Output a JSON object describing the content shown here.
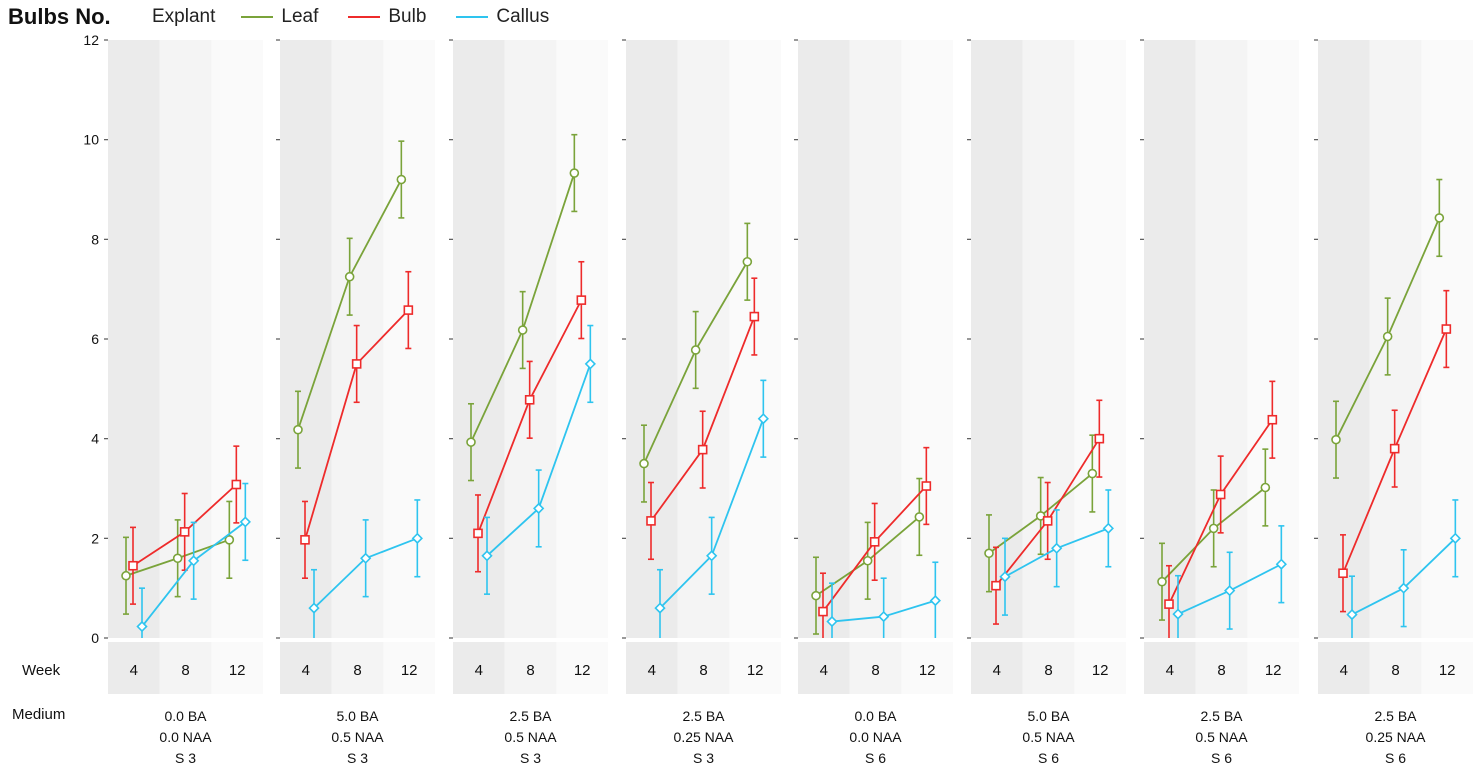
{
  "chart_data": {
    "type": "line",
    "ylabel": "Bulbs No.",
    "ylim": [
      0,
      12
    ],
    "yticks": [
      "0",
      "2",
      "4",
      "6",
      "8",
      "10",
      "12"
    ],
    "legend": {
      "title": "Explant",
      "items": [
        {
          "name": "Leaf",
          "color": "#7aa33a"
        },
        {
          "name": "Bulb",
          "color": "#ee2b2b"
        },
        {
          "name": "Callus",
          "color": "#2ec4ef"
        }
      ]
    },
    "row_labels": {
      "week": "Week",
      "medium": "Medium"
    },
    "weeks": [
      "4",
      "8",
      "12"
    ],
    "panels": [
      {
        "medium": [
          "0.0 BA",
          "0.0 NAA",
          "S 3"
        ],
        "series": [
          {
            "name": "Leaf",
            "values": [
              1.25,
              1.6,
              1.97
            ],
            "errors": [
              0.77,
              0.77,
              0.77
            ]
          },
          {
            "name": "Bulb",
            "values": [
              1.45,
              2.13,
              3.08
            ],
            "errors": [
              0.77,
              0.77,
              0.77
            ]
          },
          {
            "name": "Callus",
            "values": [
              0.23,
              1.55,
              2.33
            ],
            "errors": [
              0.77,
              0.77,
              0.77
            ]
          }
        ]
      },
      {
        "medium": [
          "5.0 BA",
          "0.5 NAA",
          "S 3"
        ],
        "series": [
          {
            "name": "Leaf",
            "values": [
              4.18,
              7.25,
              9.2
            ],
            "errors": [
              0.77,
              0.77,
              0.77
            ]
          },
          {
            "name": "Bulb",
            "values": [
              1.97,
              5.5,
              6.58
            ],
            "errors": [
              0.77,
              0.77,
              0.77
            ]
          },
          {
            "name": "Callus",
            "values": [
              0.6,
              1.6,
              2.0
            ],
            "errors": [
              0.77,
              0.77,
              0.77
            ]
          }
        ]
      },
      {
        "medium": [
          "2.5 BA",
          "0.5 NAA",
          "S 3"
        ],
        "series": [
          {
            "name": "Leaf",
            "values": [
              3.93,
              6.18,
              9.33
            ],
            "errors": [
              0.77,
              0.77,
              0.77
            ]
          },
          {
            "name": "Bulb",
            "values": [
              2.1,
              4.78,
              6.78
            ],
            "errors": [
              0.77,
              0.77,
              0.77
            ]
          },
          {
            "name": "Callus",
            "values": [
              1.65,
              2.6,
              5.5
            ],
            "errors": [
              0.77,
              0.77,
              0.77
            ]
          }
        ]
      },
      {
        "medium": [
          "2.5 BA",
          "0.25 NAA",
          "S 3"
        ],
        "series": [
          {
            "name": "Leaf",
            "values": [
              3.5,
              5.78,
              7.55
            ],
            "errors": [
              0.77,
              0.77,
              0.77
            ]
          },
          {
            "name": "Bulb",
            "values": [
              2.35,
              3.78,
              6.45
            ],
            "errors": [
              0.77,
              0.77,
              0.77
            ]
          },
          {
            "name": "Callus",
            "values": [
              0.6,
              1.65,
              4.4
            ],
            "errors": [
              0.77,
              0.77,
              0.77
            ]
          }
        ]
      },
      {
        "medium": [
          "0.0 BA",
          "0.0 NAA",
          "S 6"
        ],
        "series": [
          {
            "name": "Leaf",
            "values": [
              0.85,
              1.55,
              2.43
            ],
            "errors": [
              0.77,
              0.77,
              0.77
            ]
          },
          {
            "name": "Bulb",
            "values": [
              0.53,
              1.93,
              3.05
            ],
            "errors": [
              0.77,
              0.77,
              0.77
            ]
          },
          {
            "name": "Callus",
            "values": [
              0.33,
              0.43,
              0.75
            ],
            "errors": [
              0.77,
              0.77,
              0.77
            ]
          }
        ]
      },
      {
        "medium": [
          "5.0 BA",
          "0.5 NAA",
          "S 6"
        ],
        "series": [
          {
            "name": "Leaf",
            "values": [
              1.7,
              2.45,
              3.3
            ],
            "errors": [
              0.77,
              0.77,
              0.77
            ]
          },
          {
            "name": "Bulb",
            "values": [
              1.05,
              2.35,
              4.0
            ],
            "errors": [
              0.77,
              0.77,
              0.77
            ]
          },
          {
            "name": "Callus",
            "values": [
              1.23,
              1.8,
              2.2
            ],
            "errors": [
              0.77,
              0.77,
              0.77
            ]
          }
        ]
      },
      {
        "medium": [
          "2.5 BA",
          "0.5 NAA",
          "S 6"
        ],
        "series": [
          {
            "name": "Leaf",
            "values": [
              1.13,
              2.2,
              3.02
            ],
            "errors": [
              0.77,
              0.77,
              0.77
            ]
          },
          {
            "name": "Bulb",
            "values": [
              0.68,
              2.88,
              4.38
            ],
            "errors": [
              0.77,
              0.77,
              0.77
            ]
          },
          {
            "name": "Callus",
            "values": [
              0.48,
              0.95,
              1.48
            ],
            "errors": [
              0.77,
              0.77,
              0.77
            ]
          }
        ]
      },
      {
        "medium": [
          "2.5 BA",
          "0.25 NAA",
          "S 6"
        ],
        "series": [
          {
            "name": "Leaf",
            "values": [
              3.98,
              6.05,
              8.43
            ],
            "errors": [
              0.77,
              0.77,
              0.77
            ]
          },
          {
            "name": "Bulb",
            "values": [
              1.3,
              3.8,
              6.2
            ],
            "errors": [
              0.77,
              0.77,
              0.77
            ]
          },
          {
            "name": "Callus",
            "values": [
              0.47,
              1.0,
              2.0
            ],
            "errors": [
              0.77,
              0.77,
              0.77
            ]
          }
        ]
      }
    ]
  }
}
